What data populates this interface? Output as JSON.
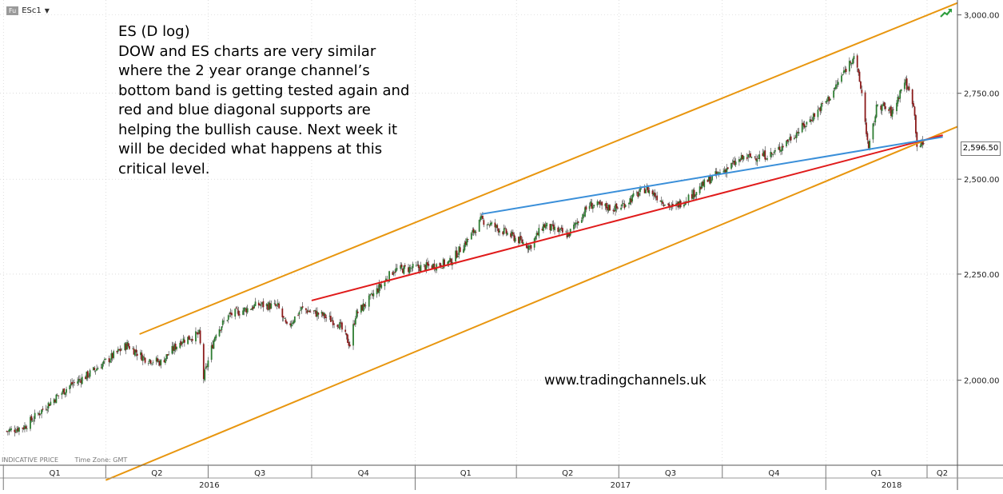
{
  "toolbar": {
    "instrument_badge": "Fu",
    "symbol": "ESc1",
    "dropdown_caret": "▼"
  },
  "annotation_lines": [
    "ES (D log)",
    "DOW and ES charts are very similar",
    "where the 2 year orange channel’s",
    "bottom band is getting tested again and",
    "red and blue diagonal supports are",
    "helping the bullish cause. Next week it",
    "will be decided what happens at this",
    "critical level."
  ],
  "watermark": "www.tradingchannels.uk",
  "footer": {
    "price_note": "INDICATIVE PRICE",
    "tz_note": "Time Zone: GMT"
  },
  "colors": {
    "channel": "#e8960f",
    "red_support": "#e01b1b",
    "blue_support": "#3a8fd9",
    "up_candle": "#2e7d32",
    "down_candle": "#8b1a1a",
    "grid": "#c8c8c8"
  },
  "icons": {
    "corner": "trend-arrow-icon"
  },
  "chart_data": {
    "type": "candlestick",
    "title": "",
    "y_scale": "log",
    "ylim": [
      1820,
      3050
    ],
    "xlim": [
      "2015-12-29",
      "2018-04-28"
    ],
    "y_ticks": [
      "2,000.00",
      "2,250.00",
      "2,500.00",
      "2,750.00",
      "3,000.00"
    ],
    "y_tick_values": [
      2000,
      2250,
      2500,
      2750,
      3000
    ],
    "last_price": {
      "label": "2,596.50",
      "value": 2596.5
    },
    "quarters": [
      {
        "label": "Q1",
        "start": "2016-01-01"
      },
      {
        "label": "Q2",
        "start": "2016-04-01"
      },
      {
        "label": "Q3",
        "start": "2016-07-01"
      },
      {
        "label": "Q4",
        "start": "2016-10-01"
      },
      {
        "label": "Q1",
        "start": "2017-01-01"
      },
      {
        "label": "Q2",
        "start": "2017-04-01"
      },
      {
        "label": "Q3",
        "start": "2017-07-01"
      },
      {
        "label": "Q4",
        "start": "2017-10-01"
      },
      {
        "label": "Q1",
        "start": "2018-01-01"
      },
      {
        "label": "Q2",
        "start": "2018-04-01"
      }
    ],
    "years": [
      {
        "label": "2016",
        "start": "2016-01-01"
      },
      {
        "label": "2017",
        "start": "2017-01-01"
      },
      {
        "label": "2018",
        "start": "2018-01-01"
      }
    ],
    "close_path": [
      [
        "2016-01-04",
        1890
      ],
      [
        "2016-01-20",
        1900
      ],
      [
        "2016-02-11",
        1950
      ],
      [
        "2016-03-01",
        1990
      ],
      [
        "2016-03-15",
        2010
      ],
      [
        "2016-03-31",
        2040
      ],
      [
        "2016-04-20",
        2080
      ],
      [
        "2016-05-05",
        2050
      ],
      [
        "2016-05-20",
        2040
      ],
      [
        "2016-06-07",
        2090
      ],
      [
        "2016-06-23",
        2105
      ],
      [
        "2016-06-27",
        2005
      ],
      [
        "2016-07-08",
        2110
      ],
      [
        "2016-07-20",
        2150
      ],
      [
        "2016-08-15",
        2175
      ],
      [
        "2016-09-01",
        2170
      ],
      [
        "2016-09-09",
        2120
      ],
      [
        "2016-09-22",
        2165
      ],
      [
        "2016-10-10",
        2150
      ],
      [
        "2016-10-25",
        2130
      ],
      [
        "2016-11-04",
        2080
      ],
      [
        "2016-11-09",
        2150
      ],
      [
        "2016-11-22",
        2190
      ],
      [
        "2016-12-13",
        2260
      ],
      [
        "2017-01-15",
        2270
      ],
      [
        "2017-02-01",
        2280
      ],
      [
        "2017-02-20",
        2350
      ],
      [
        "2017-03-01",
        2390
      ],
      [
        "2017-03-20",
        2360
      ],
      [
        "2017-04-13",
        2320
      ],
      [
        "2017-04-25",
        2375
      ],
      [
        "2017-05-17",
        2350
      ],
      [
        "2017-06-05",
        2430
      ],
      [
        "2017-06-30",
        2420
      ],
      [
        "2017-07-25",
        2475
      ],
      [
        "2017-08-18",
        2420
      ],
      [
        "2017-09-05",
        2460
      ],
      [
        "2017-09-20",
        2500
      ],
      [
        "2017-10-20",
        2560
      ],
      [
        "2017-11-15",
        2570
      ],
      [
        "2017-12-15",
        2660
      ],
      [
        "2018-01-05",
        2740
      ],
      [
        "2018-01-26",
        2870
      ],
      [
        "2018-02-02",
        2750
      ],
      [
        "2018-02-08",
        2580
      ],
      [
        "2018-02-16",
        2720
      ],
      [
        "2018-03-01",
        2690
      ],
      [
        "2018-03-12",
        2790
      ],
      [
        "2018-03-20",
        2720
      ],
      [
        "2018-03-23",
        2600
      ],
      [
        "2018-03-29",
        2596.5
      ]
    ],
    "trendlines": [
      {
        "name": "orange-upper",
        "points": [
          [
            "2016-05-01",
            2105
          ],
          [
            "2018-04-28",
            3040
          ]
        ]
      },
      {
        "name": "orange-lower",
        "points": [
          [
            "2016-04-01",
            1790
          ],
          [
            "2018-04-28",
            2650
          ]
        ]
      },
      {
        "name": "red-support",
        "points": [
          [
            "2016-10-01",
            2185
          ],
          [
            "2018-04-15",
            2625
          ]
        ]
      },
      {
        "name": "blue-support",
        "points": [
          [
            "2017-03-01",
            2405
          ],
          [
            "2018-04-15",
            2620
          ]
        ]
      }
    ]
  }
}
